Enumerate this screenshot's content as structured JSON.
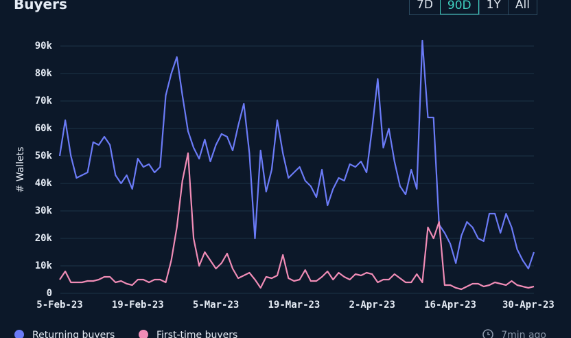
{
  "header": {
    "title": "Buyers",
    "ranges": [
      "7D",
      "90D",
      "1Y",
      "All"
    ],
    "active_range": "90D"
  },
  "chart_data": {
    "type": "line",
    "ylabel": "# Wallets",
    "categories": [
      "5-Feb-23",
      null,
      null,
      null,
      null,
      null,
      null,
      null,
      null,
      null,
      null,
      null,
      null,
      null,
      "19-Feb-23",
      null,
      null,
      null,
      null,
      null,
      null,
      null,
      null,
      null,
      null,
      null,
      null,
      null,
      "5-Mar-23",
      null,
      null,
      null,
      null,
      null,
      null,
      null,
      null,
      null,
      null,
      null,
      null,
      null,
      "19-Mar-23",
      null,
      null,
      null,
      null,
      null,
      null,
      null,
      null,
      null,
      null,
      null,
      null,
      null,
      "2-Apr-23",
      null,
      null,
      null,
      null,
      null,
      null,
      null,
      null,
      null,
      null,
      null,
      null,
      null,
      "16-Apr-23",
      null,
      null,
      null,
      null,
      null,
      null,
      null,
      null,
      null,
      null,
      null,
      null,
      null,
      "30-Apr-23",
      null
    ],
    "series": [
      {
        "name": "Returning buyers",
        "color": "#6b7bf7",
        "values": [
          50000,
          63000,
          50000,
          42000,
          43000,
          44000,
          55000,
          54000,
          57000,
          54000,
          43000,
          40000,
          43000,
          38000,
          49000,
          46000,
          47000,
          44000,
          46000,
          72000,
          80000,
          86000,
          72000,
          59000,
          53000,
          49000,
          56000,
          48000,
          54000,
          58000,
          57000,
          52000,
          61000,
          69000,
          51000,
          20000,
          52000,
          37000,
          45000,
          63000,
          51000,
          42000,
          44000,
          46000,
          41000,
          39000,
          35000,
          45000,
          32000,
          38000,
          42000,
          41000,
          47000,
          46000,
          48000,
          44000,
          60000,
          78000,
          53000,
          60000,
          48000,
          39000,
          36000,
          45000,
          38000,
          92000,
          64000,
          64000,
          25000,
          22000,
          18000,
          11000,
          21000,
          26000,
          24000,
          20000,
          19000,
          29000,
          29000,
          22000,
          29000,
          24000,
          16000,
          12000,
          9000,
          15000
        ]
      },
      {
        "name": "First-time buyers",
        "color": "#f08cb6",
        "values": [
          5000,
          8000,
          4000,
          4000,
          4000,
          4500,
          4500,
          5000,
          6000,
          6000,
          4000,
          4500,
          3500,
          3000,
          5000,
          5000,
          4000,
          5000,
          5000,
          4000,
          12000,
          24000,
          41000,
          51000,
          20000,
          10000,
          15000,
          12000,
          9000,
          11000,
          14500,
          9000,
          5500,
          6500,
          7500,
          5000,
          2000,
          6000,
          5500,
          6500,
          14000,
          5500,
          4500,
          5000,
          8500,
          4500,
          4500,
          6000,
          8000,
          5000,
          7500,
          6000,
          5000,
          7000,
          6500,
          7500,
          7000,
          4000,
          5000,
          5000,
          7000,
          5500,
          4000,
          4000,
          7000,
          4000,
          24000,
          20000,
          26000,
          3000,
          3000,
          2000,
          1500,
          2500,
          3500,
          3500,
          2500,
          3000,
          4000,
          3500,
          3000,
          4500,
          3000,
          2500,
          2000,
          2500
        ]
      }
    ],
    "ylim": [
      0,
      90000
    ],
    "yticks": [
      0,
      {
        "value": 10000,
        "label": "10k"
      },
      {
        "value": 20000,
        "label": "20k"
      },
      {
        "value": 30000,
        "label": "30k"
      },
      {
        "value": 40000,
        "label": "40k"
      },
      {
        "value": 50000,
        "label": "50k"
      },
      {
        "value": 60000,
        "label": "60k"
      },
      {
        "value": 70000,
        "label": "70k"
      },
      {
        "value": 80000,
        "label": "80k"
      },
      {
        "value": 90000,
        "label": "90k"
      }
    ],
    "grid": true
  },
  "footer": {
    "updated": "7min ago"
  }
}
